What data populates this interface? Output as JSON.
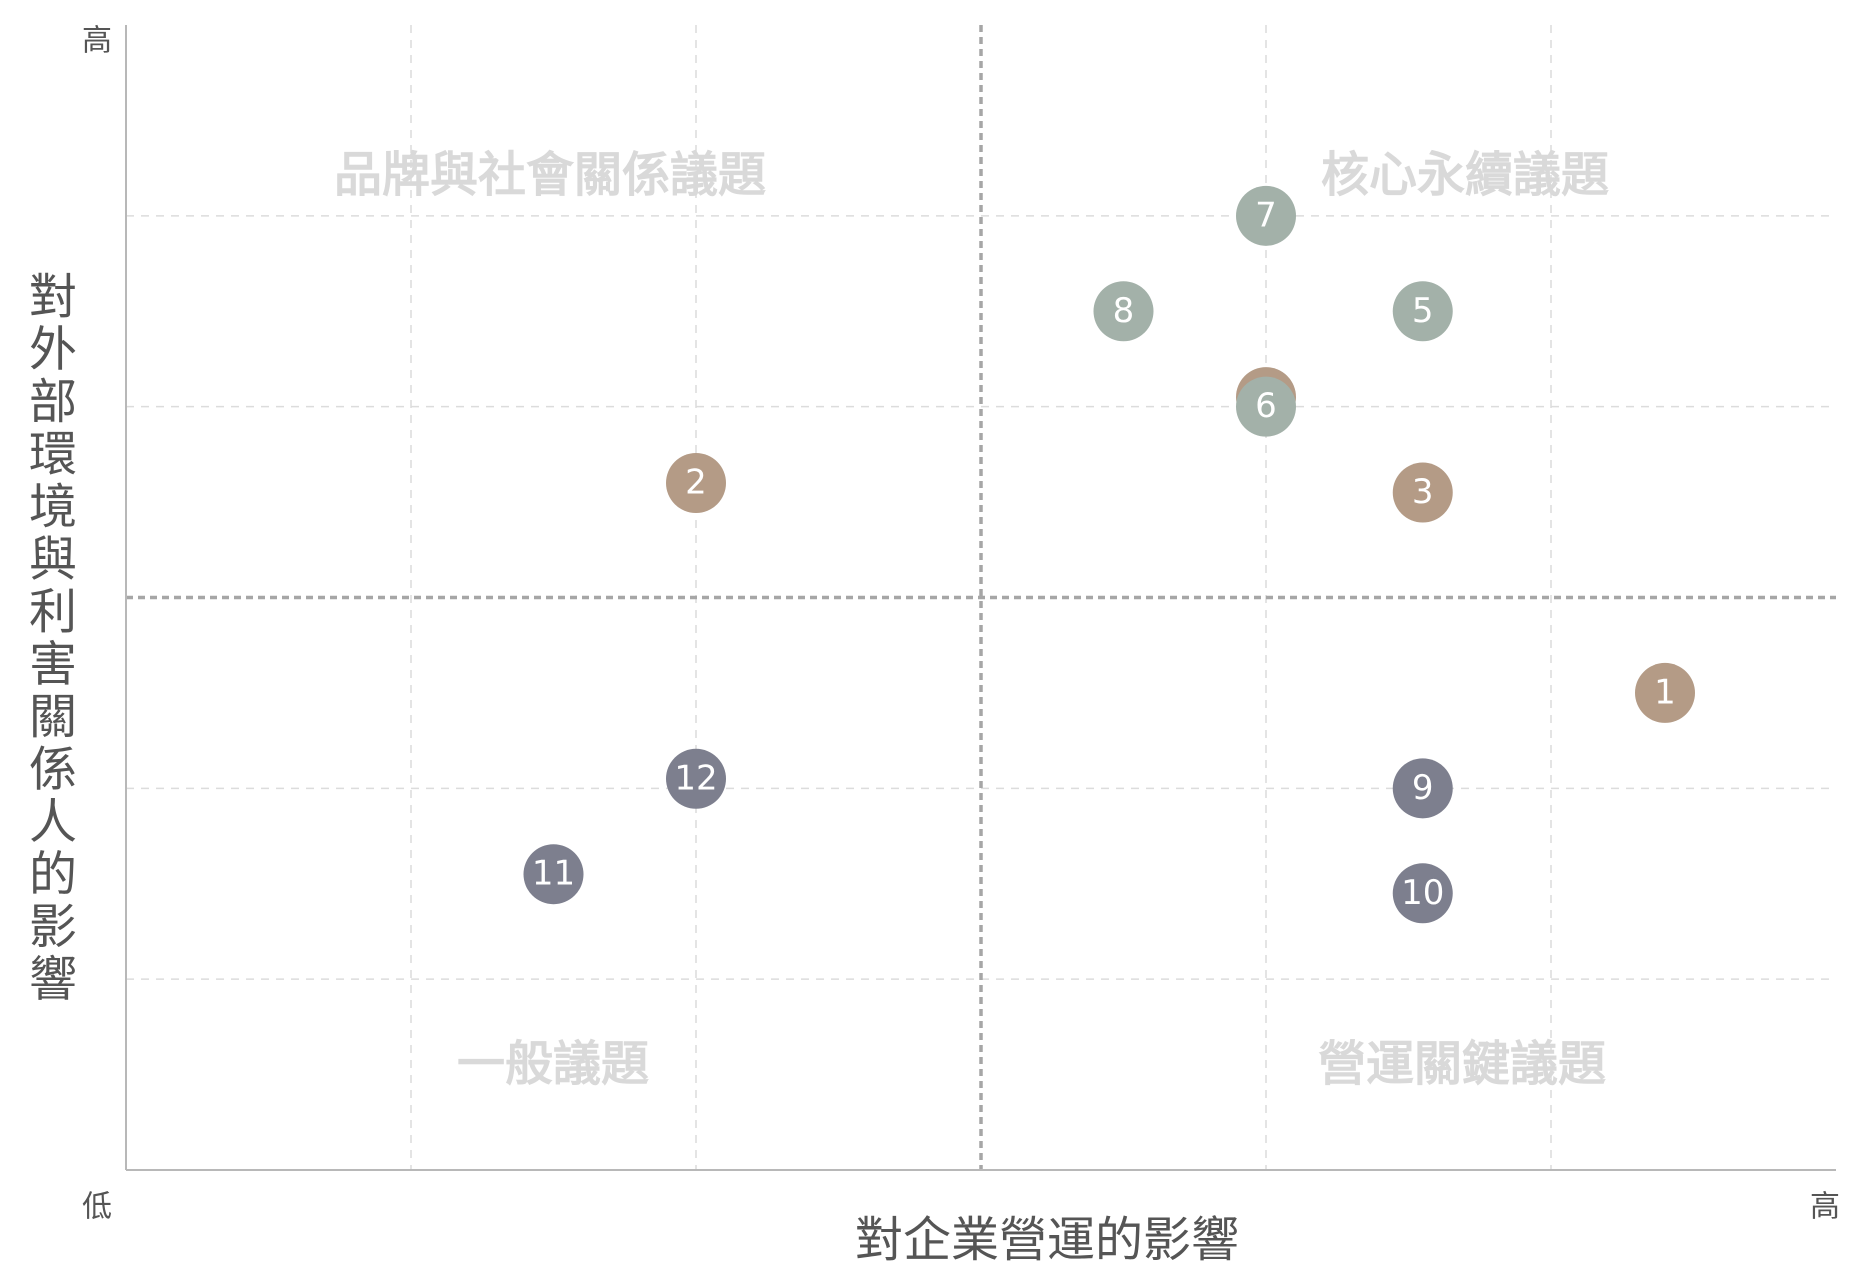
{
  "chart_data": {
    "type": "scatter",
    "title": "",
    "xlabel": "對企業營運的影響",
    "ylabel": "對外部環境與利害關係人的影響",
    "x_low_label": "低",
    "x_high_label": "高",
    "y_low_label": "低",
    "y_high_label": "高",
    "xlim": [
      0,
      6
    ],
    "ylim": [
      0,
      6
    ],
    "grid": true,
    "x_divider": 3,
    "y_divider": 3,
    "quadrants": [
      {
        "key": "top_left",
        "label": "品牌與社會關係議題"
      },
      {
        "key": "top_right",
        "label": "核心永續議題"
      },
      {
        "key": "bottom_left",
        "label": "一般議題"
      },
      {
        "key": "bottom_right",
        "label": "營運關鍵議題"
      }
    ],
    "colors": {
      "tan": "#b49b86",
      "sage": "#a3b1a9",
      "slate": "#7d7f8e"
    },
    "points": [
      {
        "label": "1",
        "x": 5.4,
        "y": 2.5,
        "color": "tan"
      },
      {
        "label": "2",
        "x": 2.0,
        "y": 3.6,
        "color": "tan"
      },
      {
        "label": "3",
        "x": 4.55,
        "y": 3.55,
        "color": "tan"
      },
      {
        "label": "4",
        "x": 4.0,
        "y": 4.05,
        "color": "tan"
      },
      {
        "label": "5",
        "x": 4.55,
        "y": 4.5,
        "color": "sage"
      },
      {
        "label": "6",
        "x": 4.0,
        "y": 4.0,
        "color": "sage"
      },
      {
        "label": "7",
        "x": 4.0,
        "y": 5.0,
        "color": "sage"
      },
      {
        "label": "8",
        "x": 3.5,
        "y": 4.5,
        "color": "sage"
      },
      {
        "label": "9",
        "x": 4.55,
        "y": 2.0,
        "color": "slate"
      },
      {
        "label": "10",
        "x": 4.55,
        "y": 1.45,
        "color": "slate"
      },
      {
        "label": "11",
        "x": 1.5,
        "y": 1.55,
        "color": "slate"
      },
      {
        "label": "12",
        "x": 2.0,
        "y": 2.05,
        "color": "slate"
      }
    ]
  }
}
